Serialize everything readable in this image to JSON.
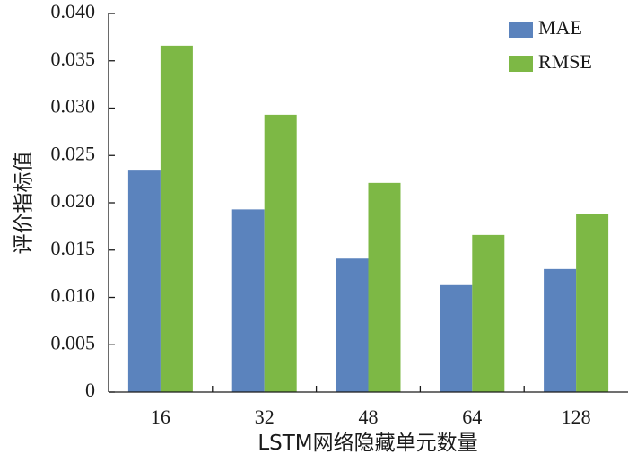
{
  "chart_data": {
    "type": "bar",
    "categories": [
      "16",
      "32",
      "48",
      "64",
      "128"
    ],
    "series": [
      {
        "name": "MAE",
        "color": "#5b83bd",
        "values": [
          0.0234,
          0.0193,
          0.0141,
          0.0113,
          0.013
        ]
      },
      {
        "name": "RMSE",
        "color": "#7db845",
        "values": [
          0.0366,
          0.0293,
          0.0221,
          0.0166,
          0.0188
        ]
      }
    ],
    "xlabel": "LSTM网络隐藏单元数量",
    "ylabel": "评价指标值",
    "ylim": [
      0,
      0.04
    ],
    "yticks": [
      "0",
      "0.005",
      "0.010",
      "0.015",
      "0.020",
      "0.025",
      "0.030",
      "0.035",
      "0.040"
    ],
    "grid": false,
    "legend_position": "top-right"
  }
}
